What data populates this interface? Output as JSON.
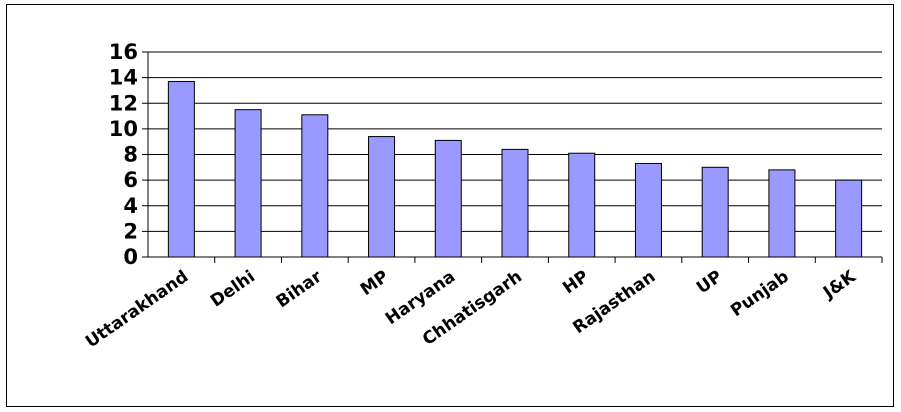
{
  "chart_data": {
    "type": "bar",
    "title": "",
    "xlabel": "",
    "ylabel": "",
    "categories": [
      "Uttarakhand",
      "Delhi",
      "Bihar",
      "MP",
      "Haryana",
      "Chhatisgarh",
      "HP",
      "Rajasthan",
      "UP",
      "Punjab",
      "J&K"
    ],
    "values": [
      13.7,
      11.5,
      11.1,
      9.4,
      9.1,
      8.4,
      8.1,
      7.3,
      7.0,
      6.8,
      6.0
    ],
    "ylim": [
      0,
      16
    ],
    "yticks": [
      "0",
      "2",
      "4",
      "6",
      "8",
      "10",
      "12",
      "14",
      "16"
    ],
    "grid": true,
    "legend": "none",
    "colors": {
      "bar_fill": "#9999ff",
      "bar_stroke": "#000000",
      "grid": "#000000"
    }
  }
}
